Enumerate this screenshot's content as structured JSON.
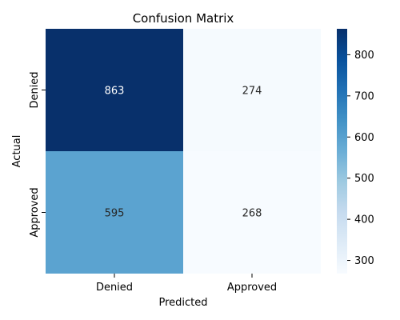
{
  "chart_data": {
    "type": "heatmap",
    "title": "Confusion Matrix",
    "xlabel": "Predicted",
    "ylabel": "Actual",
    "x_categories": [
      "Denied",
      "Approved"
    ],
    "y_categories": [
      "Denied",
      "Approved"
    ],
    "values": [
      [
        863,
        274
      ],
      [
        595,
        268
      ]
    ],
    "colormap": "Blues",
    "colorbar": {
      "range": [
        268,
        863
      ],
      "ticks": [
        300,
        400,
        500,
        600,
        700,
        800
      ]
    }
  }
}
